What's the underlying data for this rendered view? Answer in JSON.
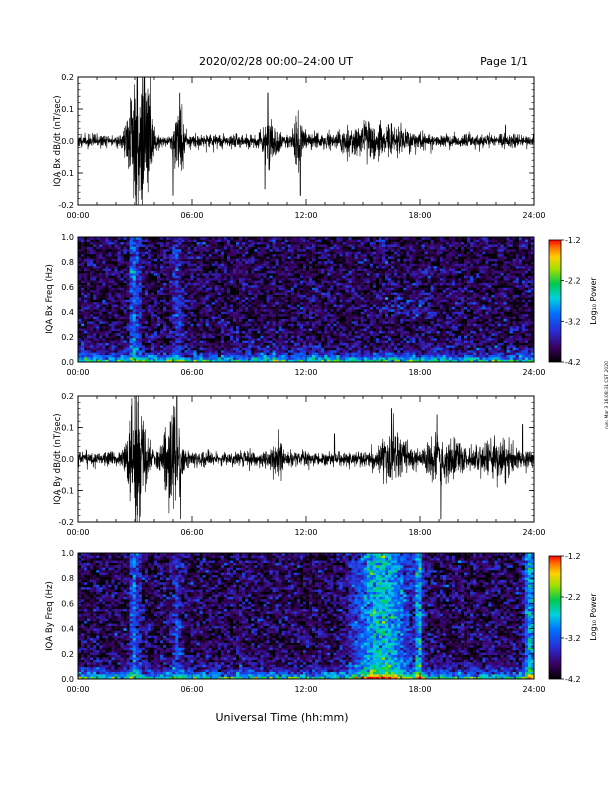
{
  "header": {
    "title": "2020/02/28  00:00–24:00 UT",
    "page": "Page 1/1"
  },
  "side_note": "run: Mar 3 16:08:31 CST 2020",
  "footer_xlabel": "Universal Time (hh:mm)",
  "colorbar": {
    "label": "Log₁₀ Power",
    "ticks": [
      "-1.2",
      "-2.2",
      "-3.2",
      "-4.2"
    ],
    "range": [
      -4.2,
      -1.2
    ]
  },
  "chart_data": [
    {
      "type": "line",
      "id": "bx-dbdt",
      "ylabel": "IQA Bx dB/dt (nT/sec)",
      "xlabel": "",
      "x_ticks": [
        "00:00",
        "06:00",
        "12:00",
        "18:00",
        "24:00"
      ],
      "xlim_hours": [
        0,
        24
      ],
      "y_ticks": [
        "0.2",
        "0.1",
        "0.0",
        "-0.1",
        "-0.2"
      ],
      "ylim": [
        -0.2,
        0.2
      ],
      "noise_floor": 0.018,
      "bursts": [
        {
          "t": 3.1,
          "width": 0.45,
          "amp": 0.2
        },
        {
          "t": 3.6,
          "width": 0.3,
          "amp": 0.16
        },
        {
          "t": 5.3,
          "width": 0.25,
          "amp": 0.12
        },
        {
          "t": 10.1,
          "width": 0.4,
          "amp": 0.05
        },
        {
          "t": 11.6,
          "width": 0.3,
          "amp": 0.055
        },
        {
          "t": 15.5,
          "width": 1.8,
          "amp": 0.035
        }
      ],
      "spikes": [
        {
          "t": 5.0,
          "v": -0.17
        },
        {
          "t": 5.35,
          "v": 0.15
        },
        {
          "t": 10.0,
          "v": 0.15
        },
        {
          "t": 9.85,
          "v": -0.15
        },
        {
          "t": 11.7,
          "v": -0.17
        },
        {
          "t": 15.3,
          "v": 0.06
        },
        {
          "t": 22.5,
          "v": 0.05
        }
      ]
    },
    {
      "type": "heatmap",
      "id": "bx-spec",
      "ylabel": "IQA Bx Freq (Hz)",
      "x_ticks": [
        "00:00",
        "06:00",
        "12:00",
        "18:00",
        "24:00"
      ],
      "xlim_hours": [
        0,
        24
      ],
      "y_ticks": [
        "1.0",
        "0.8",
        "0.6",
        "0.4",
        "0.2",
        "0.0"
      ],
      "ylim": [
        0.0,
        1.0
      ],
      "background_log_power": -3.9,
      "low_freq_peak_log_power": -2.0,
      "broadband_events": [
        {
          "t": 2.9,
          "width": 0.15,
          "boost": 0.9
        },
        {
          "t": 3.2,
          "width": 0.1,
          "boost": 0.7
        },
        {
          "t": 5.2,
          "width": 0.25,
          "boost": 0.5
        }
      ],
      "patches": [
        {
          "t": 15.2,
          "t_end": 18.6,
          "f_lo": 0.35,
          "f_hi": 0.55,
          "boost": 0.6
        }
      ]
    },
    {
      "type": "line",
      "id": "by-dbdt",
      "ylabel": "IQA By dB/dt (nT/sec)",
      "xlabel": "",
      "x_ticks": [
        "00:00",
        "06:00",
        "12:00",
        "18:00",
        "24:00"
      ],
      "xlim_hours": [
        0,
        24
      ],
      "y_ticks": [
        "0.2",
        "0.1",
        "0.0",
        "-0.1",
        "-0.2"
      ],
      "ylim": [
        -0.2,
        0.2
      ],
      "noise_floor": 0.02,
      "bursts": [
        {
          "t": 3.1,
          "width": 0.45,
          "amp": 0.2
        },
        {
          "t": 5.0,
          "width": 0.45,
          "amp": 0.17
        },
        {
          "t": 10.5,
          "width": 0.3,
          "amp": 0.045
        },
        {
          "t": 16.6,
          "width": 0.8,
          "amp": 0.06
        },
        {
          "t": 19.2,
          "width": 0.9,
          "amp": 0.05
        },
        {
          "t": 22.0,
          "width": 1.2,
          "amp": 0.04
        }
      ],
      "spikes": [
        {
          "t": 5.2,
          "v": 0.2
        },
        {
          "t": 5.4,
          "v": -0.19
        },
        {
          "t": 16.5,
          "v": 0.16
        },
        {
          "t": 18.9,
          "v": 0.14
        },
        {
          "t": 19.1,
          "v": -0.19
        },
        {
          "t": 23.4,
          "v": 0.11
        },
        {
          "t": 13.5,
          "v": 0.08
        }
      ]
    },
    {
      "type": "heatmap",
      "id": "by-spec",
      "ylabel": "IQA By Freq (Hz)",
      "x_ticks": [
        "00:00",
        "06:00",
        "12:00",
        "18:00",
        "24:00"
      ],
      "xlim_hours": [
        0,
        24
      ],
      "y_ticks": [
        "1.0",
        "0.8",
        "0.6",
        "0.4",
        "0.2",
        "0.0"
      ],
      "ylim": [
        0.0,
        1.0
      ],
      "background_log_power": -3.9,
      "low_freq_peak_log_power": -2.0,
      "broadband_events": [
        {
          "t": 2.9,
          "width": 0.15,
          "boost": 0.9
        },
        {
          "t": 3.2,
          "width": 0.1,
          "boost": 0.7
        },
        {
          "t": 5.2,
          "width": 0.25,
          "boost": 0.5
        },
        {
          "t": 16.0,
          "width": 1.4,
          "boost": 1.3
        },
        {
          "t": 17.95,
          "width": 0.18,
          "boost": 1.1
        },
        {
          "t": 23.8,
          "width": 0.3,
          "boost": 1.2
        }
      ],
      "patches": []
    }
  ]
}
